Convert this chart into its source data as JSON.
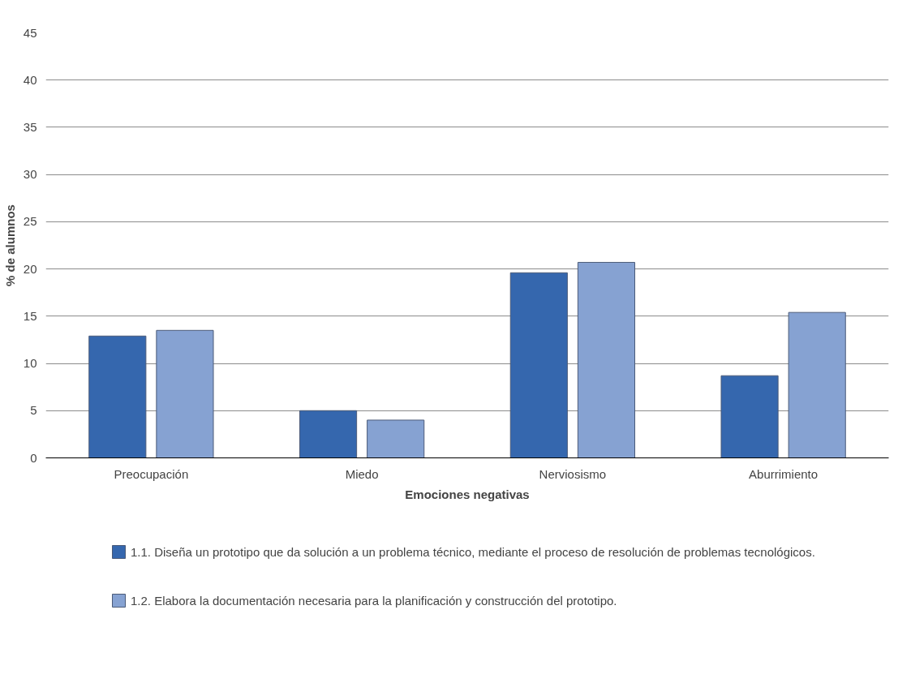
{
  "chart_data": {
    "type": "bar",
    "xlabel": "Emociones negativas",
    "ylabel": "% de alumnos",
    "categories": [
      "Preocupación",
      "Miedo",
      "Nerviosismo",
      "Aburrimiento"
    ],
    "series": [
      {
        "name": "1.1. Diseña un prototipo que da solución a un problema técnico, mediante el proceso de resolución de problemas tecnológicos.",
        "color": "#3567ae",
        "values": [
          12.9,
          5.0,
          19.6,
          8.7
        ]
      },
      {
        "name": "1.2. Elabora la documentación necesaria para la planificación y construcción del prototipo.",
        "color": "#86a2d2",
        "values": [
          13.5,
          4.0,
          20.7,
          15.4
        ]
      }
    ],
    "ylim": [
      0,
      45
    ],
    "yticks": [
      0,
      5,
      10,
      15,
      20,
      25,
      30,
      35,
      40,
      45
    ],
    "grid": "y",
    "legend": "bottom"
  }
}
